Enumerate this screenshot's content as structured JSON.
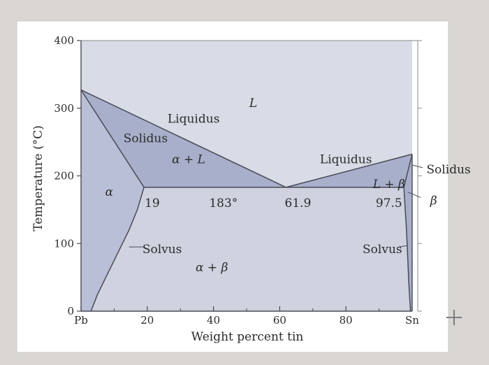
{
  "chart_data": {
    "type": "phase-diagram",
    "xlabel": "Weight percent tin",
    "ylabel": "Temperature (°C)",
    "xlim": [
      0,
      100
    ],
    "ylim": [
      0,
      400
    ],
    "x_ticks": [
      {
        "value": 0,
        "label": "Pb"
      },
      {
        "value": 20,
        "label": "20"
      },
      {
        "value": 40,
        "label": "40"
      },
      {
        "value": 60,
        "label": "60"
      },
      {
        "value": 80,
        "label": "80"
      },
      {
        "value": 100,
        "label": "Sn"
      }
    ],
    "y_ticks": [
      {
        "value": 0,
        "label": "0"
      },
      {
        "value": 100,
        "label": "100"
      },
      {
        "value": 200,
        "label": "200"
      },
      {
        "value": 300,
        "label": "300"
      },
      {
        "value": 400,
        "label": "400"
      }
    ],
    "curves": {
      "liquidus_left": [
        [
          0,
          327
        ],
        [
          61.9,
          183
        ]
      ],
      "liquidus_right": [
        [
          61.9,
          183
        ],
        [
          100,
          232
        ]
      ],
      "solidus_left": [
        [
          0,
          327
        ],
        [
          19,
          183
        ]
      ],
      "solidus_right": [
        [
          97.5,
          183
        ],
        [
          100,
          232
        ]
      ],
      "eutectic": [
        [
          19,
          183
        ],
        [
          97.5,
          183
        ]
      ],
      "solvus_left": [
        [
          19,
          183
        ],
        [
          17,
          150
        ],
        [
          14.5,
          120
        ],
        [
          11.5,
          90
        ],
        [
          8,
          55
        ],
        [
          5,
          25
        ],
        [
          3,
          0
        ]
      ],
      "solvus_right": [
        [
          97.5,
          183
        ],
        [
          98.3,
          120
        ],
        [
          99,
          40
        ],
        [
          99.5,
          0
        ]
      ]
    },
    "annotations": [
      {
        "key": "L",
        "text": "L",
        "x": 52,
        "y": 308,
        "italic": true
      },
      {
        "key": "liquidus_l",
        "text": "Liquidus",
        "x": 34,
        "y": 285
      },
      {
        "key": "solidus_l",
        "text": "Solidus",
        "x": 19.5,
        "y": 256
      },
      {
        "key": "alpha_l",
        "text": "α + L",
        "x": 32.5,
        "y": 225,
        "italic": true
      },
      {
        "key": "alpha",
        "text": "α",
        "x": 8.5,
        "y": 177,
        "italic": true
      },
      {
        "key": "c19",
        "text": "19",
        "x": 21.5,
        "y": 160
      },
      {
        "key": "c183",
        "text": "183°",
        "x": 43,
        "y": 160
      },
      {
        "key": "c619",
        "text": "61.9",
        "x": 65.5,
        "y": 160
      },
      {
        "key": "liquidus_r",
        "text": "Liquidus",
        "x": 80,
        "y": 225
      },
      {
        "key": "l_beta",
        "text": "L + β",
        "x": 93,
        "y": 188,
        "italic": true
      },
      {
        "key": "c975",
        "text": "97.5",
        "x": 93,
        "y": 160
      },
      {
        "key": "solvus_l",
        "text": "Solvus",
        "x": 24.5,
        "y": 92
      },
      {
        "key": "solvus_r",
        "text": "Solvus",
        "x": 91,
        "y": 92
      },
      {
        "key": "alpha_beta",
        "text": "α + β",
        "x": 39.5,
        "y": 65,
        "italic": true
      },
      {
        "key": "solidus_out",
        "text": "Solidus",
        "x": 111,
        "y": 210
      },
      {
        "key": "beta_out",
        "text": "β",
        "x": 106.5,
        "y": 164,
        "italic": true
      }
    ],
    "colors": {
      "frame_bg": "#ffffff",
      "plot_bg": "#e8eaef",
      "liquid": "#d8dce6",
      "alpha_plus_liquid": "#a8afcb",
      "alpha": "#b9bfd6",
      "alpha_plus_beta": "#cfd3e0",
      "line": "#4a4a55"
    }
  }
}
